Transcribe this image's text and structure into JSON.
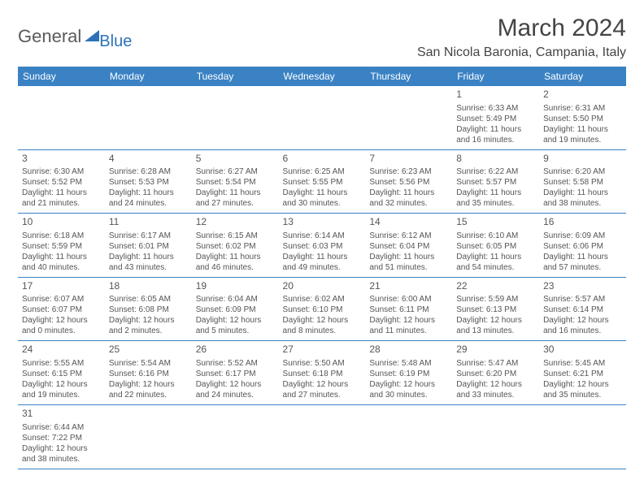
{
  "logo": {
    "general": "General",
    "blue": "Blue"
  },
  "title": "March 2024",
  "location": "San Nicola Baronia, Campania, Italy",
  "colors": {
    "header_bg": "#3a82c4",
    "header_text": "#ffffff",
    "divider": "#3a82c4",
    "text": "#555555",
    "logo_gray": "#5a5a5a",
    "logo_blue": "#2d72b8"
  },
  "weekdays": [
    "Sunday",
    "Monday",
    "Tuesday",
    "Wednesday",
    "Thursday",
    "Friday",
    "Saturday"
  ],
  "first_weekday": 5,
  "days": [
    {
      "n": 1,
      "sr": "6:33 AM",
      "ss": "5:49 PM",
      "dl": "11 hours and 16 minutes."
    },
    {
      "n": 2,
      "sr": "6:31 AM",
      "ss": "5:50 PM",
      "dl": "11 hours and 19 minutes."
    },
    {
      "n": 3,
      "sr": "6:30 AM",
      "ss": "5:52 PM",
      "dl": "11 hours and 21 minutes."
    },
    {
      "n": 4,
      "sr": "6:28 AM",
      "ss": "5:53 PM",
      "dl": "11 hours and 24 minutes."
    },
    {
      "n": 5,
      "sr": "6:27 AM",
      "ss": "5:54 PM",
      "dl": "11 hours and 27 minutes."
    },
    {
      "n": 6,
      "sr": "6:25 AM",
      "ss": "5:55 PM",
      "dl": "11 hours and 30 minutes."
    },
    {
      "n": 7,
      "sr": "6:23 AM",
      "ss": "5:56 PM",
      "dl": "11 hours and 32 minutes."
    },
    {
      "n": 8,
      "sr": "6:22 AM",
      "ss": "5:57 PM",
      "dl": "11 hours and 35 minutes."
    },
    {
      "n": 9,
      "sr": "6:20 AM",
      "ss": "5:58 PM",
      "dl": "11 hours and 38 minutes."
    },
    {
      "n": 10,
      "sr": "6:18 AM",
      "ss": "5:59 PM",
      "dl": "11 hours and 40 minutes."
    },
    {
      "n": 11,
      "sr": "6:17 AM",
      "ss": "6:01 PM",
      "dl": "11 hours and 43 minutes."
    },
    {
      "n": 12,
      "sr": "6:15 AM",
      "ss": "6:02 PM",
      "dl": "11 hours and 46 minutes."
    },
    {
      "n": 13,
      "sr": "6:14 AM",
      "ss": "6:03 PM",
      "dl": "11 hours and 49 minutes."
    },
    {
      "n": 14,
      "sr": "6:12 AM",
      "ss": "6:04 PM",
      "dl": "11 hours and 51 minutes."
    },
    {
      "n": 15,
      "sr": "6:10 AM",
      "ss": "6:05 PM",
      "dl": "11 hours and 54 minutes."
    },
    {
      "n": 16,
      "sr": "6:09 AM",
      "ss": "6:06 PM",
      "dl": "11 hours and 57 minutes."
    },
    {
      "n": 17,
      "sr": "6:07 AM",
      "ss": "6:07 PM",
      "dl": "12 hours and 0 minutes."
    },
    {
      "n": 18,
      "sr": "6:05 AM",
      "ss": "6:08 PM",
      "dl": "12 hours and 2 minutes."
    },
    {
      "n": 19,
      "sr": "6:04 AM",
      "ss": "6:09 PM",
      "dl": "12 hours and 5 minutes."
    },
    {
      "n": 20,
      "sr": "6:02 AM",
      "ss": "6:10 PM",
      "dl": "12 hours and 8 minutes."
    },
    {
      "n": 21,
      "sr": "6:00 AM",
      "ss": "6:11 PM",
      "dl": "12 hours and 11 minutes."
    },
    {
      "n": 22,
      "sr": "5:59 AM",
      "ss": "6:13 PM",
      "dl": "12 hours and 13 minutes."
    },
    {
      "n": 23,
      "sr": "5:57 AM",
      "ss": "6:14 PM",
      "dl": "12 hours and 16 minutes."
    },
    {
      "n": 24,
      "sr": "5:55 AM",
      "ss": "6:15 PM",
      "dl": "12 hours and 19 minutes."
    },
    {
      "n": 25,
      "sr": "5:54 AM",
      "ss": "6:16 PM",
      "dl": "12 hours and 22 minutes."
    },
    {
      "n": 26,
      "sr": "5:52 AM",
      "ss": "6:17 PM",
      "dl": "12 hours and 24 minutes."
    },
    {
      "n": 27,
      "sr": "5:50 AM",
      "ss": "6:18 PM",
      "dl": "12 hours and 27 minutes."
    },
    {
      "n": 28,
      "sr": "5:48 AM",
      "ss": "6:19 PM",
      "dl": "12 hours and 30 minutes."
    },
    {
      "n": 29,
      "sr": "5:47 AM",
      "ss": "6:20 PM",
      "dl": "12 hours and 33 minutes."
    },
    {
      "n": 30,
      "sr": "5:45 AM",
      "ss": "6:21 PM",
      "dl": "12 hours and 35 minutes."
    },
    {
      "n": 31,
      "sr": "6:44 AM",
      "ss": "7:22 PM",
      "dl": "12 hours and 38 minutes."
    }
  ],
  "labels": {
    "sunrise": "Sunrise:",
    "sunset": "Sunset:",
    "daylight": "Daylight:"
  }
}
